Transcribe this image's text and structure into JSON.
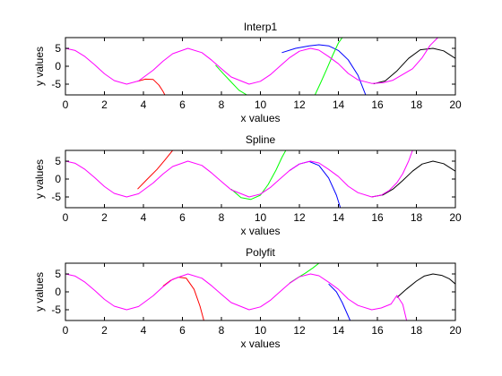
{
  "figure": {
    "background": "#ffffff"
  },
  "chart_data": [
    {
      "type": "line",
      "title": "Interp1",
      "xlabel": "x values",
      "ylabel": "y values",
      "xlim": [
        0,
        20
      ],
      "ylim": [
        -8,
        8
      ],
      "xticks": [
        0,
        2,
        4,
        6,
        8,
        10,
        12,
        14,
        16,
        18,
        20
      ],
      "yticks": [
        5,
        0,
        -5
      ],
      "grid": false,
      "series": [
        {
          "color": "#ff0000",
          "x": [
            3.7,
            4.1,
            4.5,
            4.8,
            5.0,
            5.1
          ],
          "y": [
            -4.2,
            -3.6,
            -3.7,
            -5.3,
            -7.0,
            -8.0
          ]
        },
        {
          "color": "#00ff00",
          "x": [
            7.7,
            8.1,
            8.5,
            8.9,
            9.3
          ],
          "y": [
            0.3,
            -2.1,
            -4.4,
            -6.7,
            -8.0
          ]
        },
        {
          "color": "#0000ff",
          "x": [
            11.1,
            11.8,
            12.5,
            13.0,
            13.5,
            14.0,
            14.5,
            15.0,
            15.4
          ],
          "y": [
            3.8,
            5.0,
            5.7,
            6.0,
            5.7,
            4.4,
            1.8,
            -2.5,
            -8.0
          ]
        },
        {
          "color": "#00ff00",
          "x": [
            12.8,
            13.1,
            13.4,
            13.7,
            14.0,
            14.2
          ],
          "y": [
            -8.0,
            -4.5,
            -0.8,
            3.0,
            6.5,
            8.0
          ]
        },
        {
          "color": "#000000",
          "x": [
            15.8,
            16.4,
            17.0,
            17.6,
            18.2,
            18.85,
            19.4,
            20.0
          ],
          "y": [
            -4.9,
            -4.1,
            -1.3,
            2.2,
            4.6,
            5.0,
            4.3,
            2.2
          ]
        },
        {
          "color": "#ff00ff",
          "x": [
            0,
            0.5,
            1,
            1.5,
            2,
            2.5,
            3.14,
            3.75,
            4.5,
            5,
            5.5,
            6.28,
            7,
            7.5,
            8,
            8.5,
            9.42,
            10,
            10.5,
            11,
            11.5,
            12,
            12.57,
            13,
            13.5,
            14,
            14.5,
            15,
            15.71,
            16.3,
            16.8,
            17.3,
            17.8,
            18.3,
            18.7,
            19.1
          ],
          "y": [
            5,
            4.4,
            2.7,
            0.4,
            -2.1,
            -4.0,
            -5,
            -4.1,
            -1.1,
            1.4,
            3.5,
            5,
            3.8,
            1.7,
            -0.7,
            -3.0,
            -5,
            -4.2,
            -2.4,
            0.02,
            2.4,
            4.2,
            5,
            4.5,
            2.7,
            0.7,
            -2.0,
            -3.8,
            -4.8,
            -4.6,
            -3.9,
            -2.3,
            -0.7,
            2.4,
            5.8,
            8.0
          ]
        }
      ]
    },
    {
      "type": "line",
      "title": "Spline",
      "xlabel": "x values",
      "ylabel": "y values",
      "xlim": [
        0,
        20
      ],
      "ylim": [
        -8,
        8
      ],
      "xticks": [
        0,
        2,
        4,
        6,
        8,
        10,
        12,
        14,
        16,
        18,
        20
      ],
      "yticks": [
        5,
        0,
        -5
      ],
      "grid": false,
      "series": [
        {
          "color": "#ff0000",
          "x": [
            3.7,
            4.2,
            4.7,
            5.1,
            5.5
          ],
          "y": [
            -2.8,
            0.0,
            2.7,
            5.3,
            8.0
          ]
        },
        {
          "color": "#00ff00",
          "x": [
            8.5,
            9.0,
            9.5,
            10.0,
            10.4,
            10.8,
            11.1,
            11.3
          ],
          "y": [
            -2.8,
            -5.2,
            -5.7,
            -4.5,
            -1.5,
            2.5,
            6.0,
            8.0
          ]
        },
        {
          "color": "#0000ff",
          "x": [
            11.5,
            12.0,
            12.5,
            13.0,
            13.5,
            13.9,
            14.1
          ],
          "y": [
            2.4,
            4.2,
            4.9,
            3.8,
            0.3,
            -4.5,
            -8.0
          ]
        },
        {
          "color": "#000000",
          "x": [
            15.7,
            16.3,
            16.8,
            17.3,
            17.8,
            18.3,
            18.85,
            19.4,
            20.0
          ],
          "y": [
            -5.0,
            -4.4,
            -2.8,
            -0.4,
            2.2,
            4.2,
            5.0,
            4.3,
            2.2
          ]
        },
        {
          "color": "#ff00ff",
          "x": [
            0,
            0.5,
            1,
            1.5,
            2,
            2.5,
            3.14,
            3.75,
            4.5,
            5,
            5.5,
            6.28,
            7,
            7.5,
            8,
            8.5,
            9.42,
            10,
            10.5,
            11,
            11.5,
            12,
            12.57,
            13,
            13.5,
            14,
            14.5,
            15,
            15.71,
            16.2,
            16.6,
            17.0,
            17.3,
            17.6,
            17.8
          ],
          "y": [
            5,
            4.4,
            2.7,
            0.4,
            -2.1,
            -4.0,
            -5,
            -4.1,
            -1.1,
            1.4,
            3.5,
            5,
            3.8,
            1.7,
            -0.7,
            -3.0,
            -5,
            -4.2,
            -2.4,
            0.02,
            2.4,
            4.2,
            5,
            4.5,
            2.7,
            0.7,
            -2.0,
            -3.8,
            -5,
            -4.5,
            -3.2,
            -1.0,
            1.5,
            5.0,
            8.0
          ]
        }
      ]
    },
    {
      "type": "line",
      "title": "Polyfit",
      "xlabel": "x values",
      "ylabel": "y values",
      "xlim": [
        0,
        20
      ],
      "ylim": [
        -8,
        8
      ],
      "xticks": [
        0,
        2,
        4,
        6,
        8,
        10,
        12,
        14,
        16,
        18,
        20
      ],
      "yticks": [
        5,
        0,
        -5
      ],
      "grid": false,
      "series": [
        {
          "color": "#ff0000",
          "x": [
            5.0,
            5.4,
            5.8,
            6.2,
            6.6,
            6.9,
            7.1
          ],
          "y": [
            1.6,
            3.2,
            4.1,
            3.8,
            0.7,
            -4.0,
            -8.0
          ]
        },
        {
          "color": "#00ff00",
          "x": [
            11.5,
            11.9,
            12.3,
            12.7,
            13.0
          ],
          "y": [
            2.5,
            3.9,
            5.2,
            6.7,
            8.0
          ]
        },
        {
          "color": "#0000ff",
          "x": [
            13.5,
            13.9,
            14.2,
            14.4,
            14.6
          ],
          "y": [
            2.2,
            0.0,
            -3.0,
            -5.5,
            -8.0
          ]
        },
        {
          "color": "#000000",
          "x": [
            17.0,
            17.5,
            18.0,
            18.4,
            18.85,
            19.3,
            19.7,
            20.0
          ],
          "y": [
            -1.6,
            0.8,
            3.0,
            4.4,
            5.0,
            4.6,
            3.6,
            2.2
          ]
        },
        {
          "color": "#ff00ff",
          "x": [
            0,
            0.5,
            1,
            1.5,
            2,
            2.5,
            3.14,
            3.75,
            4.5,
            5,
            5.5,
            6.28,
            7,
            7.5,
            8,
            8.5,
            9.42,
            10,
            10.5,
            11,
            11.5,
            12,
            12.57,
            13,
            13.5,
            14,
            14.5,
            15,
            15.71,
            16.2,
            16.7,
            17.0,
            17.3,
            17.5
          ],
          "y": [
            5,
            4.4,
            2.7,
            0.4,
            -2.1,
            -4.0,
            -5,
            -4.1,
            -1.1,
            1.4,
            3.5,
            5,
            3.8,
            1.7,
            -0.7,
            -3.0,
            -5,
            -4.2,
            -2.4,
            0.02,
            2.4,
            4.2,
            5,
            4.5,
            2.7,
            0.7,
            -2.0,
            -3.8,
            -5,
            -4.5,
            -3.4,
            -1.0,
            -3.5,
            -8.0
          ]
        }
      ]
    }
  ]
}
